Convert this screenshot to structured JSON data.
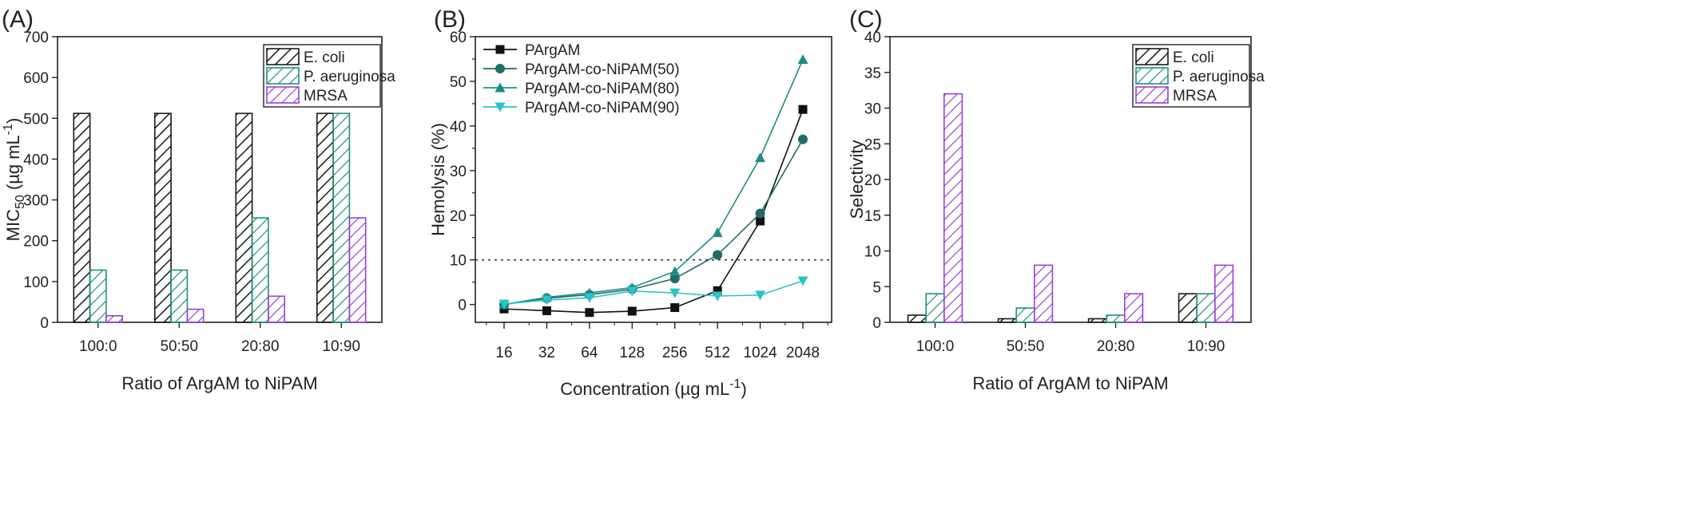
{
  "panels": [
    {
      "label": "(A)"
    },
    {
      "label": "(B)"
    },
    {
      "label": "(C)"
    }
  ],
  "chart_data": [
    {
      "type": "bar",
      "categories": [
        "100:0",
        "50:50",
        "20:80",
        "10:90"
      ],
      "series": [
        {
          "name": "E. coli",
          "values": [
            512,
            512,
            512,
            512
          ],
          "color": "#1a1a1a"
        },
        {
          "name": "P. aeruginosa",
          "values": [
            128,
            128,
            256,
            512
          ],
          "color": "#1f9080"
        },
        {
          "name": "MRSA",
          "values": [
            16,
            32,
            64,
            256
          ],
          "color": "#9b3fd6"
        }
      ],
      "xlabel": "Ratio of ArgAM to NiPAM",
      "ylabel": {
        "pre": "MIC",
        "sub": "50",
        "mid": " (µg mL",
        "sup": "-1",
        "post": ")"
      },
      "ylim": [
        0,
        700
      ],
      "yticks": [
        0,
        100,
        200,
        300,
        400,
        500,
        600,
        700
      ],
      "legend": "top-right",
      "grid": false,
      "pattern": "diagonal hatch"
    },
    {
      "type": "line",
      "x": [
        16,
        32,
        64,
        128,
        256,
        512,
        1024,
        2048
      ],
      "xscale": "log2",
      "series": [
        {
          "name": "PArgAM",
          "values": [
            -1.0,
            -1.4,
            -1.8,
            -1.5,
            -0.7,
            3.1,
            18.7,
            43.7
          ],
          "color": "#111111",
          "marker": "square"
        },
        {
          "name": "PArgAM-co-NiPAM(50)",
          "values": [
            0.0,
            1.4,
            2.2,
            3.4,
            5.8,
            11.1,
            20.4,
            37.0
          ],
          "color": "#1f6b66",
          "marker": "circle"
        },
        {
          "name": "PArgAM-co-NiPAM(80)",
          "values": [
            0.0,
            1.6,
            2.6,
            3.8,
            7.4,
            16.1,
            32.9,
            54.9
          ],
          "color": "#1d8c84",
          "marker": "triangle-up"
        },
        {
          "name": "PArgAM-co-NiPAM(90)",
          "values": [
            0.1,
            1.0,
            1.5,
            3.0,
            2.6,
            1.9,
            2.1,
            5.3
          ],
          "color": "#2cc3c9",
          "marker": "triangle-down"
        }
      ],
      "xlabel": {
        "pre": "Concentration (µg mL",
        "sup": "-1",
        "post": ")"
      },
      "ylabel": "Hemolysis (%)",
      "ylim": [
        -4,
        60
      ],
      "yticks": [
        0,
        10,
        20,
        30,
        40,
        50,
        60
      ],
      "reference_line": {
        "y": 10,
        "style": "dotted"
      },
      "legend": "top-left",
      "grid": false
    },
    {
      "type": "bar",
      "categories": [
        "100:0",
        "50:50",
        "20:80",
        "10:90"
      ],
      "series": [
        {
          "name": "E. coli",
          "values": [
            1,
            0.5,
            0.5,
            4
          ],
          "color": "#1a1a1a"
        },
        {
          "name": "P. aeruginosa",
          "values": [
            4,
            2,
            1,
            4
          ],
          "color": "#1f9080"
        },
        {
          "name": "MRSA",
          "values": [
            32,
            8,
            4,
            8
          ],
          "color": "#9b3fd6"
        }
      ],
      "xlabel": "Ratio of ArgAM to NiPAM",
      "ylabel": "Selectivity",
      "ylim": [
        0,
        40
      ],
      "yticks": [
        0,
        5,
        10,
        15,
        20,
        25,
        30,
        35,
        40
      ],
      "legend": "top-right",
      "grid": false,
      "pattern": "diagonal hatch"
    }
  ]
}
